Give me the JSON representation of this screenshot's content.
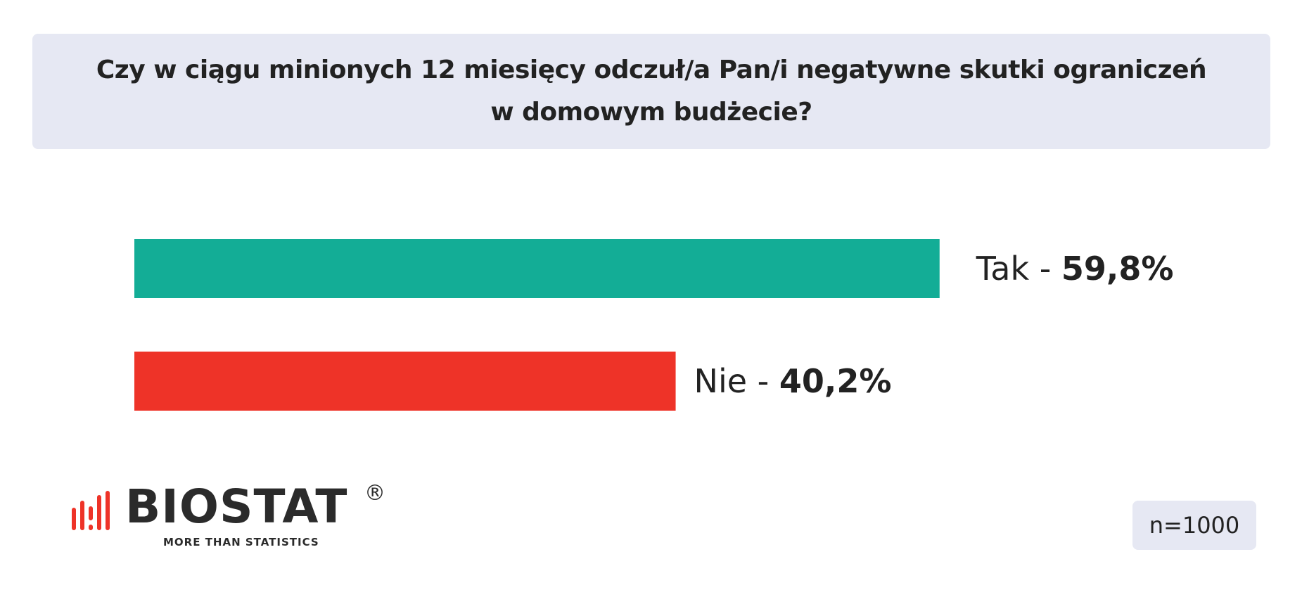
{
  "title": {
    "line1": "Czy w ciągu minionych 12 miesięcy odczuł/a Pan/i negatywne skutki ograniczeń",
    "line2": "w domowym budżecie?"
  },
  "chart_data": {
    "type": "bar",
    "orientation": "horizontal",
    "categories": [
      "Tak",
      "Nie"
    ],
    "values": [
      59.8,
      40.2
    ],
    "value_labels": [
      "59,8%",
      "40,2%"
    ],
    "label_separator": " - ",
    "colors": [
      "#13ad96",
      "#ee3328"
    ],
    "xlim": [
      0,
      74.7
    ],
    "grid": false,
    "legend": "none"
  },
  "logo": {
    "wordmark": "BIOSTAT",
    "registered": "®",
    "tagline": "MORE THAN STATISTICS",
    "accent_color": "#ee3328"
  },
  "sample_size": "n=1000"
}
